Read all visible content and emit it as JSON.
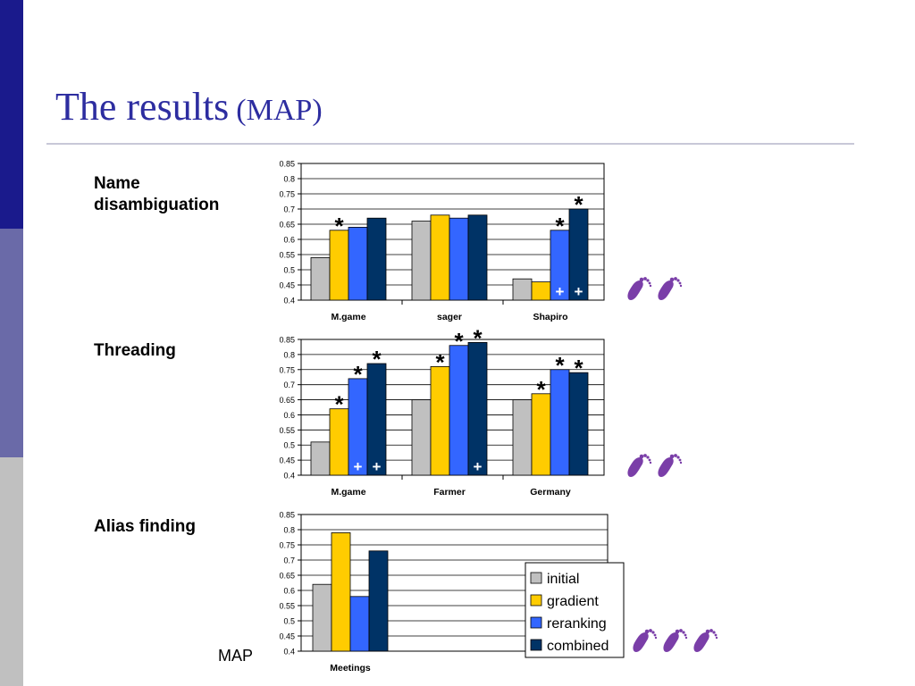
{
  "slide": {
    "title_main": "The results",
    "title_sub": "(MAP)",
    "map_note": "MAP",
    "colors": {
      "accent": "#2d2da0",
      "strip_top": "#1a1a8c",
      "strip_mid": "#6a6aa8",
      "strip_bot": "#c0c0c0",
      "footprint": "#7a3ea8"
    }
  },
  "sections": [
    {
      "label_line1": "Name",
      "label_line2": "disambiguation"
    },
    {
      "label_line1": "Threading",
      "label_line2": ""
    },
    {
      "label_line1": "Alias finding",
      "label_line2": ""
    }
  ],
  "legend": {
    "items": [
      {
        "name": "initial",
        "color": "#c0c0c0"
      },
      {
        "name": "gradient",
        "color": "#ffcc00"
      },
      {
        "name": "reranking",
        "color": "#3366ff"
      },
      {
        "name": "combined",
        "color": "#003366"
      }
    ]
  },
  "chart_data": [
    {
      "type": "bar",
      "categories": [
        "M.game",
        "sager",
        "Shapiro"
      ],
      "series": [
        {
          "name": "initial",
          "values": [
            0.54,
            0.66,
            0.47
          ]
        },
        {
          "name": "gradient",
          "values": [
            0.63,
            0.68,
            0.46
          ]
        },
        {
          "name": "reranking",
          "values": [
            0.64,
            0.67,
            0.63
          ]
        },
        {
          "name": "combined",
          "values": [
            0.67,
            0.68,
            0.7
          ]
        }
      ],
      "ylim": [
        0.4,
        0.85
      ],
      "yticks": [
        "0.4",
        "0.45",
        "0.5",
        "0.55",
        "0.6",
        "0.65",
        "0.7",
        "0.75",
        "0.8",
        "0.85"
      ],
      "grid": true,
      "stars": [
        [
          0,
          1
        ],
        [
          2,
          2
        ],
        [
          2,
          3
        ]
      ],
      "pluses": [
        [
          2,
          2
        ],
        [
          2,
          3
        ]
      ],
      "footprints": 2
    },
    {
      "type": "bar",
      "categories": [
        "M.game",
        "Farmer",
        "Germany"
      ],
      "series": [
        {
          "name": "initial",
          "values": [
            0.51,
            0.65,
            0.65
          ]
        },
        {
          "name": "gradient",
          "values": [
            0.62,
            0.76,
            0.67
          ]
        },
        {
          "name": "reranking",
          "values": [
            0.72,
            0.83,
            0.75
          ]
        },
        {
          "name": "combined",
          "values": [
            0.77,
            0.84,
            0.74
          ]
        }
      ],
      "ylim": [
        0.4,
        0.85
      ],
      "yticks": [
        "0.4",
        "0.45",
        "0.5",
        "0.55",
        "0.6",
        "0.65",
        "0.7",
        "0.75",
        "0.8",
        "0.85"
      ],
      "grid": true,
      "stars": [
        [
          0,
          1
        ],
        [
          0,
          2
        ],
        [
          0,
          3
        ],
        [
          1,
          1
        ],
        [
          1,
          2
        ],
        [
          1,
          3
        ],
        [
          2,
          1
        ],
        [
          2,
          2
        ],
        [
          2,
          3
        ]
      ],
      "pluses": [
        [
          0,
          2
        ],
        [
          0,
          3
        ],
        [
          1,
          3
        ]
      ],
      "footprints": 2
    },
    {
      "type": "bar",
      "categories": [
        "Meetings"
      ],
      "series": [
        {
          "name": "initial",
          "values": [
            0.62
          ]
        },
        {
          "name": "gradient",
          "values": [
            0.79
          ]
        },
        {
          "name": "reranking",
          "values": [
            0.58
          ]
        },
        {
          "name": "combined",
          "values": [
            0.73
          ]
        }
      ],
      "ylim": [
        0.4,
        0.85
      ],
      "yticks": [
        "0.4",
        "0.45",
        "0.5",
        "0.55",
        "0.6",
        "0.65",
        "0.7",
        "0.75",
        "0.8",
        "0.85"
      ],
      "grid": true,
      "legend": "right",
      "stars": [],
      "pluses": [],
      "footprints": 3
    }
  ]
}
